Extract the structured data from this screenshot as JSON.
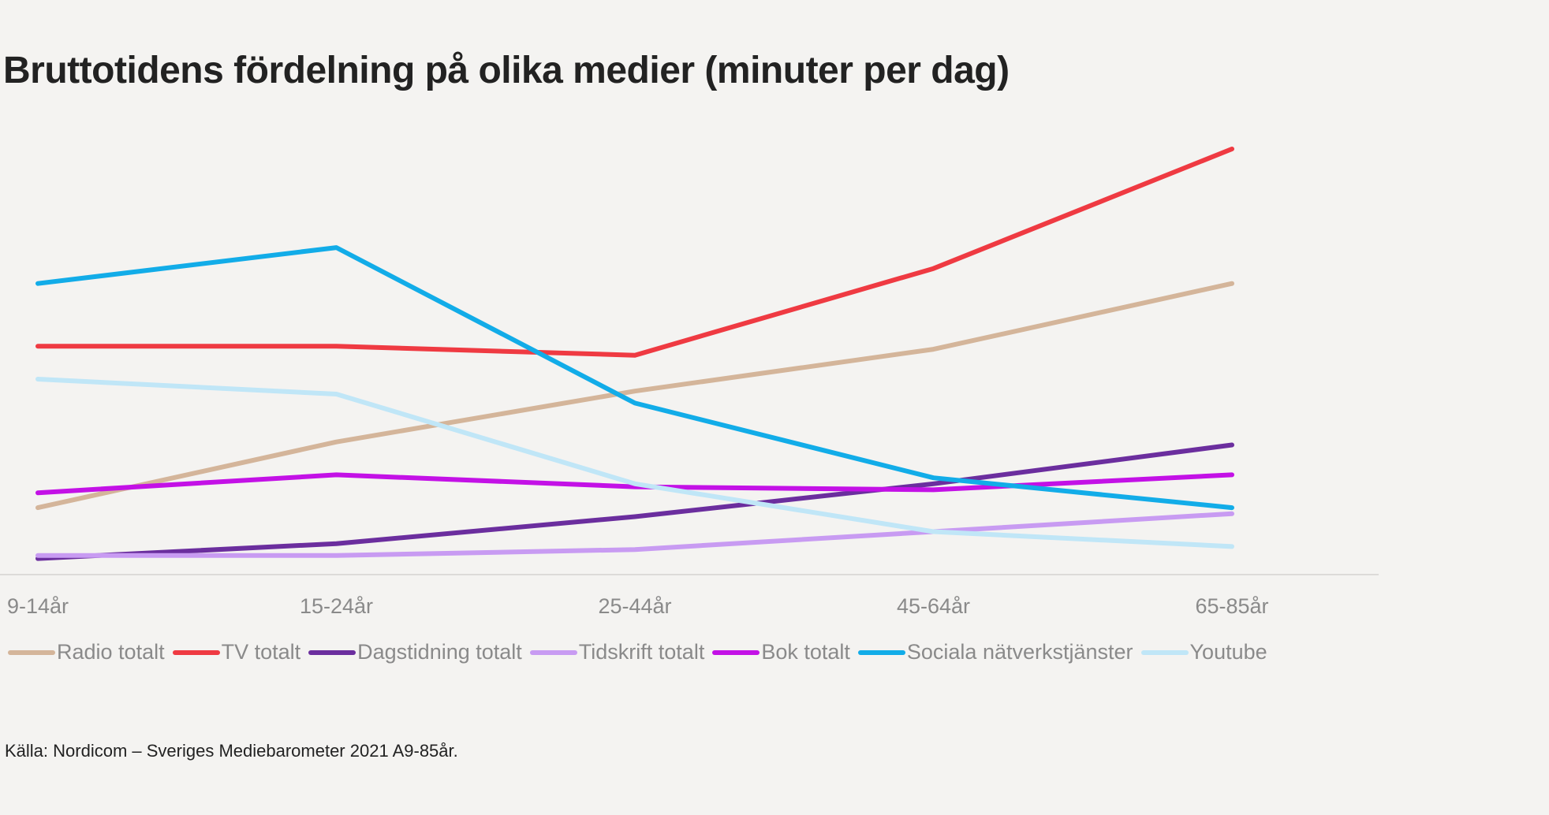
{
  "chart_data": {
    "type": "line",
    "title": "Bruttotidens fördelning på olika medier (minuter per dag)",
    "categories": [
      "9-14år",
      "15-24år",
      "25-44år",
      "45-64år",
      "65-85år"
    ],
    "ylim": [
      0,
      145
    ],
    "grid": false,
    "legend_position": "bottom",
    "series": [
      {
        "name": "Radio totalt",
        "color": "#d4b59a",
        "values": [
          20,
          42,
          59,
          73,
          95
        ]
      },
      {
        "name": "TV totalt",
        "color": "#ef3a42",
        "values": [
          74,
          74,
          71,
          100,
          140
        ]
      },
      {
        "name": "Dagstidning totalt",
        "color": "#6b2e9e",
        "values": [
          3,
          8,
          17,
          28,
          41
        ]
      },
      {
        "name": "Tidskrift totalt",
        "color": "#c89bf2",
        "values": [
          4,
          4,
          6,
          12,
          18
        ]
      },
      {
        "name": "Bok totalt",
        "color": "#c311e6",
        "values": [
          25,
          31,
          27,
          26,
          31
        ]
      },
      {
        "name": "Sociala nätverkstjänster",
        "color": "#12ace8",
        "values": [
          95,
          107,
          55,
          30,
          20
        ]
      },
      {
        "name": "Youtube",
        "color": "#c0e6f7",
        "values": [
          63,
          58,
          28,
          12,
          7
        ]
      }
    ]
  },
  "source": "Källa: Nordicom – Sveriges Mediebarometer 2021 A9-85år."
}
